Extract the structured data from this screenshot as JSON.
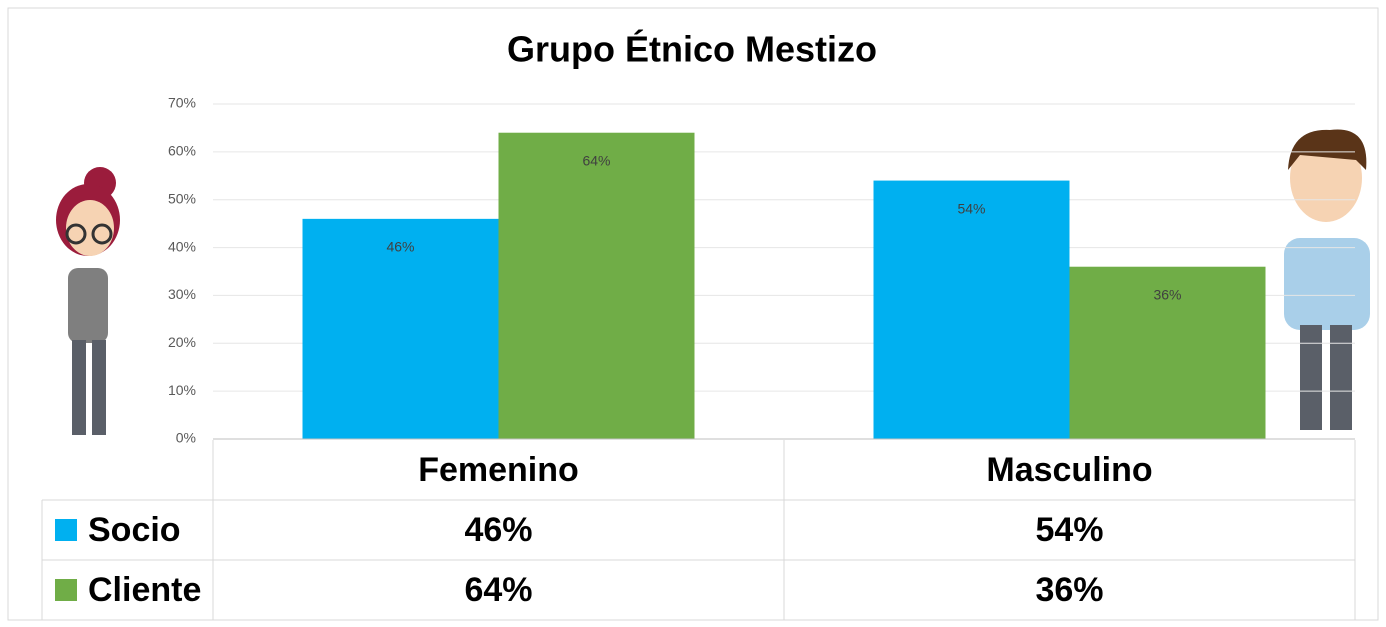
{
  "chart_data": {
    "type": "bar",
    "title": "Grupo Étnico Mestizo",
    "categories": [
      "Femenino",
      "Masculino"
    ],
    "series": [
      {
        "name": "Socio",
        "color": "#00b0f0",
        "values": [
          46,
          54
        ],
        "value_labels": [
          "46%",
          "54%"
        ]
      },
      {
        "name": "Cliente",
        "color": "#70ad47",
        "values": [
          64,
          36
        ],
        "value_labels": [
          "64%",
          "36%"
        ]
      }
    ],
    "ylim": [
      0,
      70
    ],
    "yticks": [
      {
        "value": 0,
        "label": "0%"
      },
      {
        "value": 10,
        "label": "10%"
      },
      {
        "value": 20,
        "label": "20%"
      },
      {
        "value": 30,
        "label": "30%"
      },
      {
        "value": 40,
        "label": "40%"
      },
      {
        "value": 50,
        "label": "50%"
      },
      {
        "value": 60,
        "label": "60%"
      },
      {
        "value": 70,
        "label": "70%"
      }
    ],
    "grid": true
  }
}
